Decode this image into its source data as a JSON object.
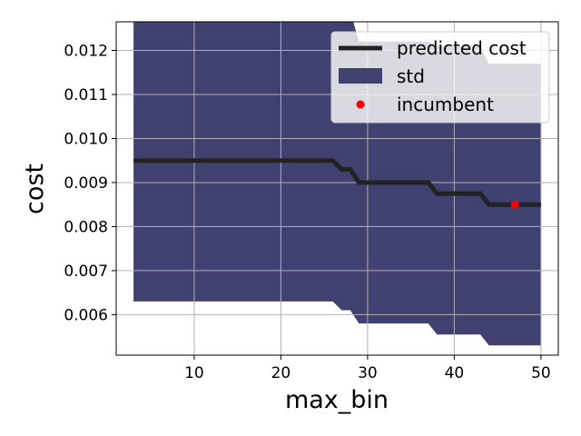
{
  "chart_data": {
    "type": "line",
    "xlabel": "max_bin",
    "ylabel": "cost",
    "xlim": [
      1,
      52
    ],
    "ylim": [
      0.00508,
      0.01265
    ],
    "grid": true,
    "legend_position": "top-right",
    "x_ticks": [
      10,
      20,
      30,
      40,
      50
    ],
    "x_tick_labels": [
      "10",
      "20",
      "30",
      "40",
      "50"
    ],
    "y_ticks": [
      0.006,
      0.007,
      0.008,
      0.009,
      0.01,
      0.011,
      0.012
    ],
    "y_tick_labels": [
      "0.006",
      "0.007",
      "0.008",
      "0.009",
      "0.010",
      "0.011",
      "0.012"
    ],
    "series": [
      {
        "name": "predicted cost",
        "kind": "line",
        "color": "#222222",
        "points": [
          [
            3,
            0.0095
          ],
          [
            26,
            0.0095
          ],
          [
            27,
            0.0093
          ],
          [
            28,
            0.0093
          ],
          [
            29,
            0.009
          ],
          [
            37,
            0.009
          ],
          [
            38,
            0.00875
          ],
          [
            43,
            0.00875
          ],
          [
            44,
            0.0085
          ],
          [
            50,
            0.0085
          ]
        ]
      },
      {
        "name": "std",
        "kind": "band",
        "color": "#404071",
        "upper": [
          [
            3,
            0.0131
          ],
          [
            26,
            0.0131
          ],
          [
            27,
            0.0129
          ],
          [
            28,
            0.0129
          ],
          [
            29,
            0.0122
          ],
          [
            37,
            0.0122
          ],
          [
            38,
            0.0121
          ],
          [
            43,
            0.0121
          ],
          [
            44,
            0.0117
          ],
          [
            50,
            0.0117
          ]
        ],
        "lower": [
          [
            3,
            0.0063
          ],
          [
            26,
            0.0063
          ],
          [
            27,
            0.0061
          ],
          [
            28,
            0.0061
          ],
          [
            29,
            0.0058
          ],
          [
            37,
            0.0058
          ],
          [
            38,
            0.00555
          ],
          [
            43,
            0.00555
          ],
          [
            44,
            0.0053
          ],
          [
            50,
            0.0053
          ]
        ]
      },
      {
        "name": "incumbent",
        "kind": "scatter",
        "color": "#ff0000",
        "points": [
          [
            47,
            0.0085
          ]
        ]
      }
    ],
    "legend": [
      {
        "label": "predicted cost",
        "marker": "line",
        "color": "#222222"
      },
      {
        "label": "std",
        "marker": "patch",
        "color": "#404071"
      },
      {
        "label": "incumbent",
        "marker": "dot",
        "color": "#ff0000"
      }
    ]
  }
}
